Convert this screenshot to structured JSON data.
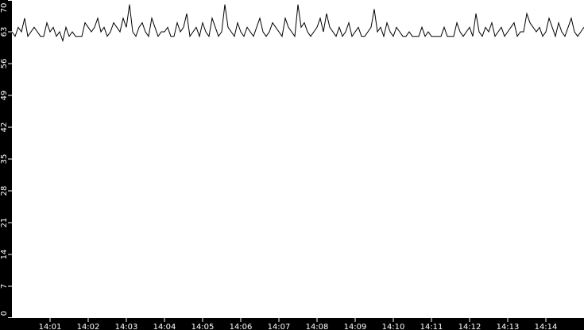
{
  "chart_data": {
    "type": "line",
    "title": "",
    "xlabel": "",
    "ylabel": "",
    "ylim": [
      0,
      70
    ],
    "xlim": [
      "14:00:00",
      "14:15:00"
    ],
    "y_ticks": [
      "0",
      "7",
      "14",
      "21",
      "28",
      "35",
      "42",
      "49",
      "56",
      "63",
      "70"
    ],
    "x_ticks": [
      "14:01",
      "14:02",
      "14:03",
      "14:04",
      "14:05",
      "14:06",
      "14:07",
      "14:08",
      "14:09",
      "14:10",
      "14:11",
      "14:12",
      "14:13",
      "14:14"
    ],
    "grid": false,
    "legend": "none",
    "colors": {
      "background": "#000000",
      "plot_area": "#ffffff",
      "line": "#000000",
      "axis_text": "#ffffff"
    },
    "series": [
      {
        "x": [
          "14:00:00",
          "14:00:05",
          "14:00:10",
          "14:00:15",
          "14:00:20",
          "14:00:25",
          "14:00:30",
          "14:00:35",
          "14:00:40",
          "14:00:45",
          "14:00:50",
          "14:00:55",
          "14:01:00",
          "14:01:05",
          "14:01:10",
          "14:01:15",
          "14:01:20",
          "14:01:25",
          "14:01:30",
          "14:01:35",
          "14:01:40",
          "14:01:45",
          "14:01:50",
          "14:01:55",
          "14:02:00",
          "14:02:05",
          "14:02:10",
          "14:02:15",
          "14:02:20",
          "14:02:25",
          "14:02:30",
          "14:02:35",
          "14:02:40",
          "14:02:45",
          "14:02:50",
          "14:02:55",
          "14:03:00",
          "14:03:05",
          "14:03:10",
          "14:03:15",
          "14:03:20",
          "14:03:25",
          "14:03:30",
          "14:03:35",
          "14:03:40",
          "14:03:45",
          "14:03:50",
          "14:03:55",
          "14:04:00",
          "14:04:05",
          "14:04:10",
          "14:04:15",
          "14:04:20",
          "14:04:25",
          "14:04:30",
          "14:04:35",
          "14:04:40",
          "14:04:45",
          "14:04:50",
          "14:04:55",
          "14:05:00",
          "14:05:05",
          "14:05:10",
          "14:05:15",
          "14:05:20",
          "14:05:25",
          "14:05:30",
          "14:05:35",
          "14:05:40",
          "14:05:45",
          "14:05:50",
          "14:05:55",
          "14:06:00",
          "14:06:05",
          "14:06:10",
          "14:06:15",
          "14:06:20",
          "14:06:25",
          "14:06:30",
          "14:06:35",
          "14:06:40",
          "14:06:45",
          "14:06:50",
          "14:06:55",
          "14:07:00",
          "14:07:05",
          "14:07:10",
          "14:07:15",
          "14:07:20",
          "14:07:25",
          "14:07:30",
          "14:07:35",
          "14:07:40",
          "14:07:45",
          "14:07:50",
          "14:07:55",
          "14:08:00",
          "14:08:05",
          "14:08:10",
          "14:08:15",
          "14:08:20",
          "14:08:25",
          "14:08:30",
          "14:08:35",
          "14:08:40",
          "14:08:45",
          "14:08:50",
          "14:08:55",
          "14:09:00",
          "14:09:05",
          "14:09:10",
          "14:09:15",
          "14:09:20",
          "14:09:25",
          "14:09:30",
          "14:09:35",
          "14:09:40",
          "14:09:45",
          "14:09:50",
          "14:09:55",
          "14:10:00",
          "14:10:05",
          "14:10:10",
          "14:10:15",
          "14:10:20",
          "14:10:25",
          "14:10:30",
          "14:10:35",
          "14:10:40",
          "14:10:45",
          "14:10:50",
          "14:10:55",
          "14:11:00",
          "14:11:05",
          "14:11:10",
          "14:11:15",
          "14:11:20",
          "14:11:25",
          "14:11:30",
          "14:11:35",
          "14:11:40",
          "14:11:45",
          "14:11:50",
          "14:11:55",
          "14:12:00",
          "14:12:05",
          "14:12:10",
          "14:12:15",
          "14:12:20",
          "14:12:25",
          "14:12:30",
          "14:12:35",
          "14:12:40",
          "14:12:45",
          "14:12:50",
          "14:12:55",
          "14:13:00",
          "14:13:05",
          "14:13:10",
          "14:13:15",
          "14:13:20",
          "14:13:25",
          "14:13:30",
          "14:13:35",
          "14:13:40",
          "14:13:45",
          "14:13:50",
          "14:13:55",
          "14:14:00",
          "14:14:05",
          "14:14:10",
          "14:14:15",
          "14:14:20",
          "14:14:25",
          "14:14:30",
          "14:14:35",
          "14:14:40",
          "14:14:45",
          "14:14:50",
          "14:14:55",
          "14:15:00"
        ],
        "values": [
          63,
          62,
          64,
          63,
          66,
          62,
          63,
          64,
          63,
          62,
          62,
          65,
          63,
          64,
          62,
          63,
          61,
          64,
          62,
          63,
          62,
          62,
          62,
          65,
          64,
          63,
          64,
          66,
          63,
          64,
          62,
          63,
          65,
          64,
          63,
          66,
          64,
          69,
          63,
          62,
          64,
          65,
          63,
          62,
          66,
          64,
          62,
          63,
          63,
          64,
          62,
          62,
          65,
          63,
          64,
          67,
          62,
          63,
          64,
          62,
          65,
          63,
          62,
          66,
          64,
          62,
          63,
          69,
          64,
          63,
          62,
          65,
          63,
          62,
          64,
          63,
          62,
          64,
          66,
          63,
          62,
          63,
          65,
          64,
          63,
          62,
          66,
          64,
          63,
          62,
          69,
          64,
          65,
          63,
          62,
          63,
          64,
          66,
          63,
          67,
          64,
          63,
          62,
          64,
          62,
          63,
          65,
          62,
          63,
          64,
          62,
          62,
          63,
          64,
          68,
          63,
          64,
          62,
          65,
          63,
          62,
          64,
          63,
          62,
          62,
          63,
          62,
          62,
          62,
          64,
          62,
          63,
          62,
          62,
          62,
          62,
          64,
          62,
          62,
          62,
          65,
          63,
          62,
          63,
          64,
          62,
          67,
          63,
          62,
          64,
          63,
          65,
          62,
          63,
          64,
          62,
          63,
          64,
          65,
          62,
          63,
          63,
          67,
          65,
          64,
          63,
          64,
          62,
          63,
          66,
          64,
          62,
          65,
          63,
          62,
          64,
          66,
          63,
          62,
          63,
          64
        ]
      }
    ]
  }
}
